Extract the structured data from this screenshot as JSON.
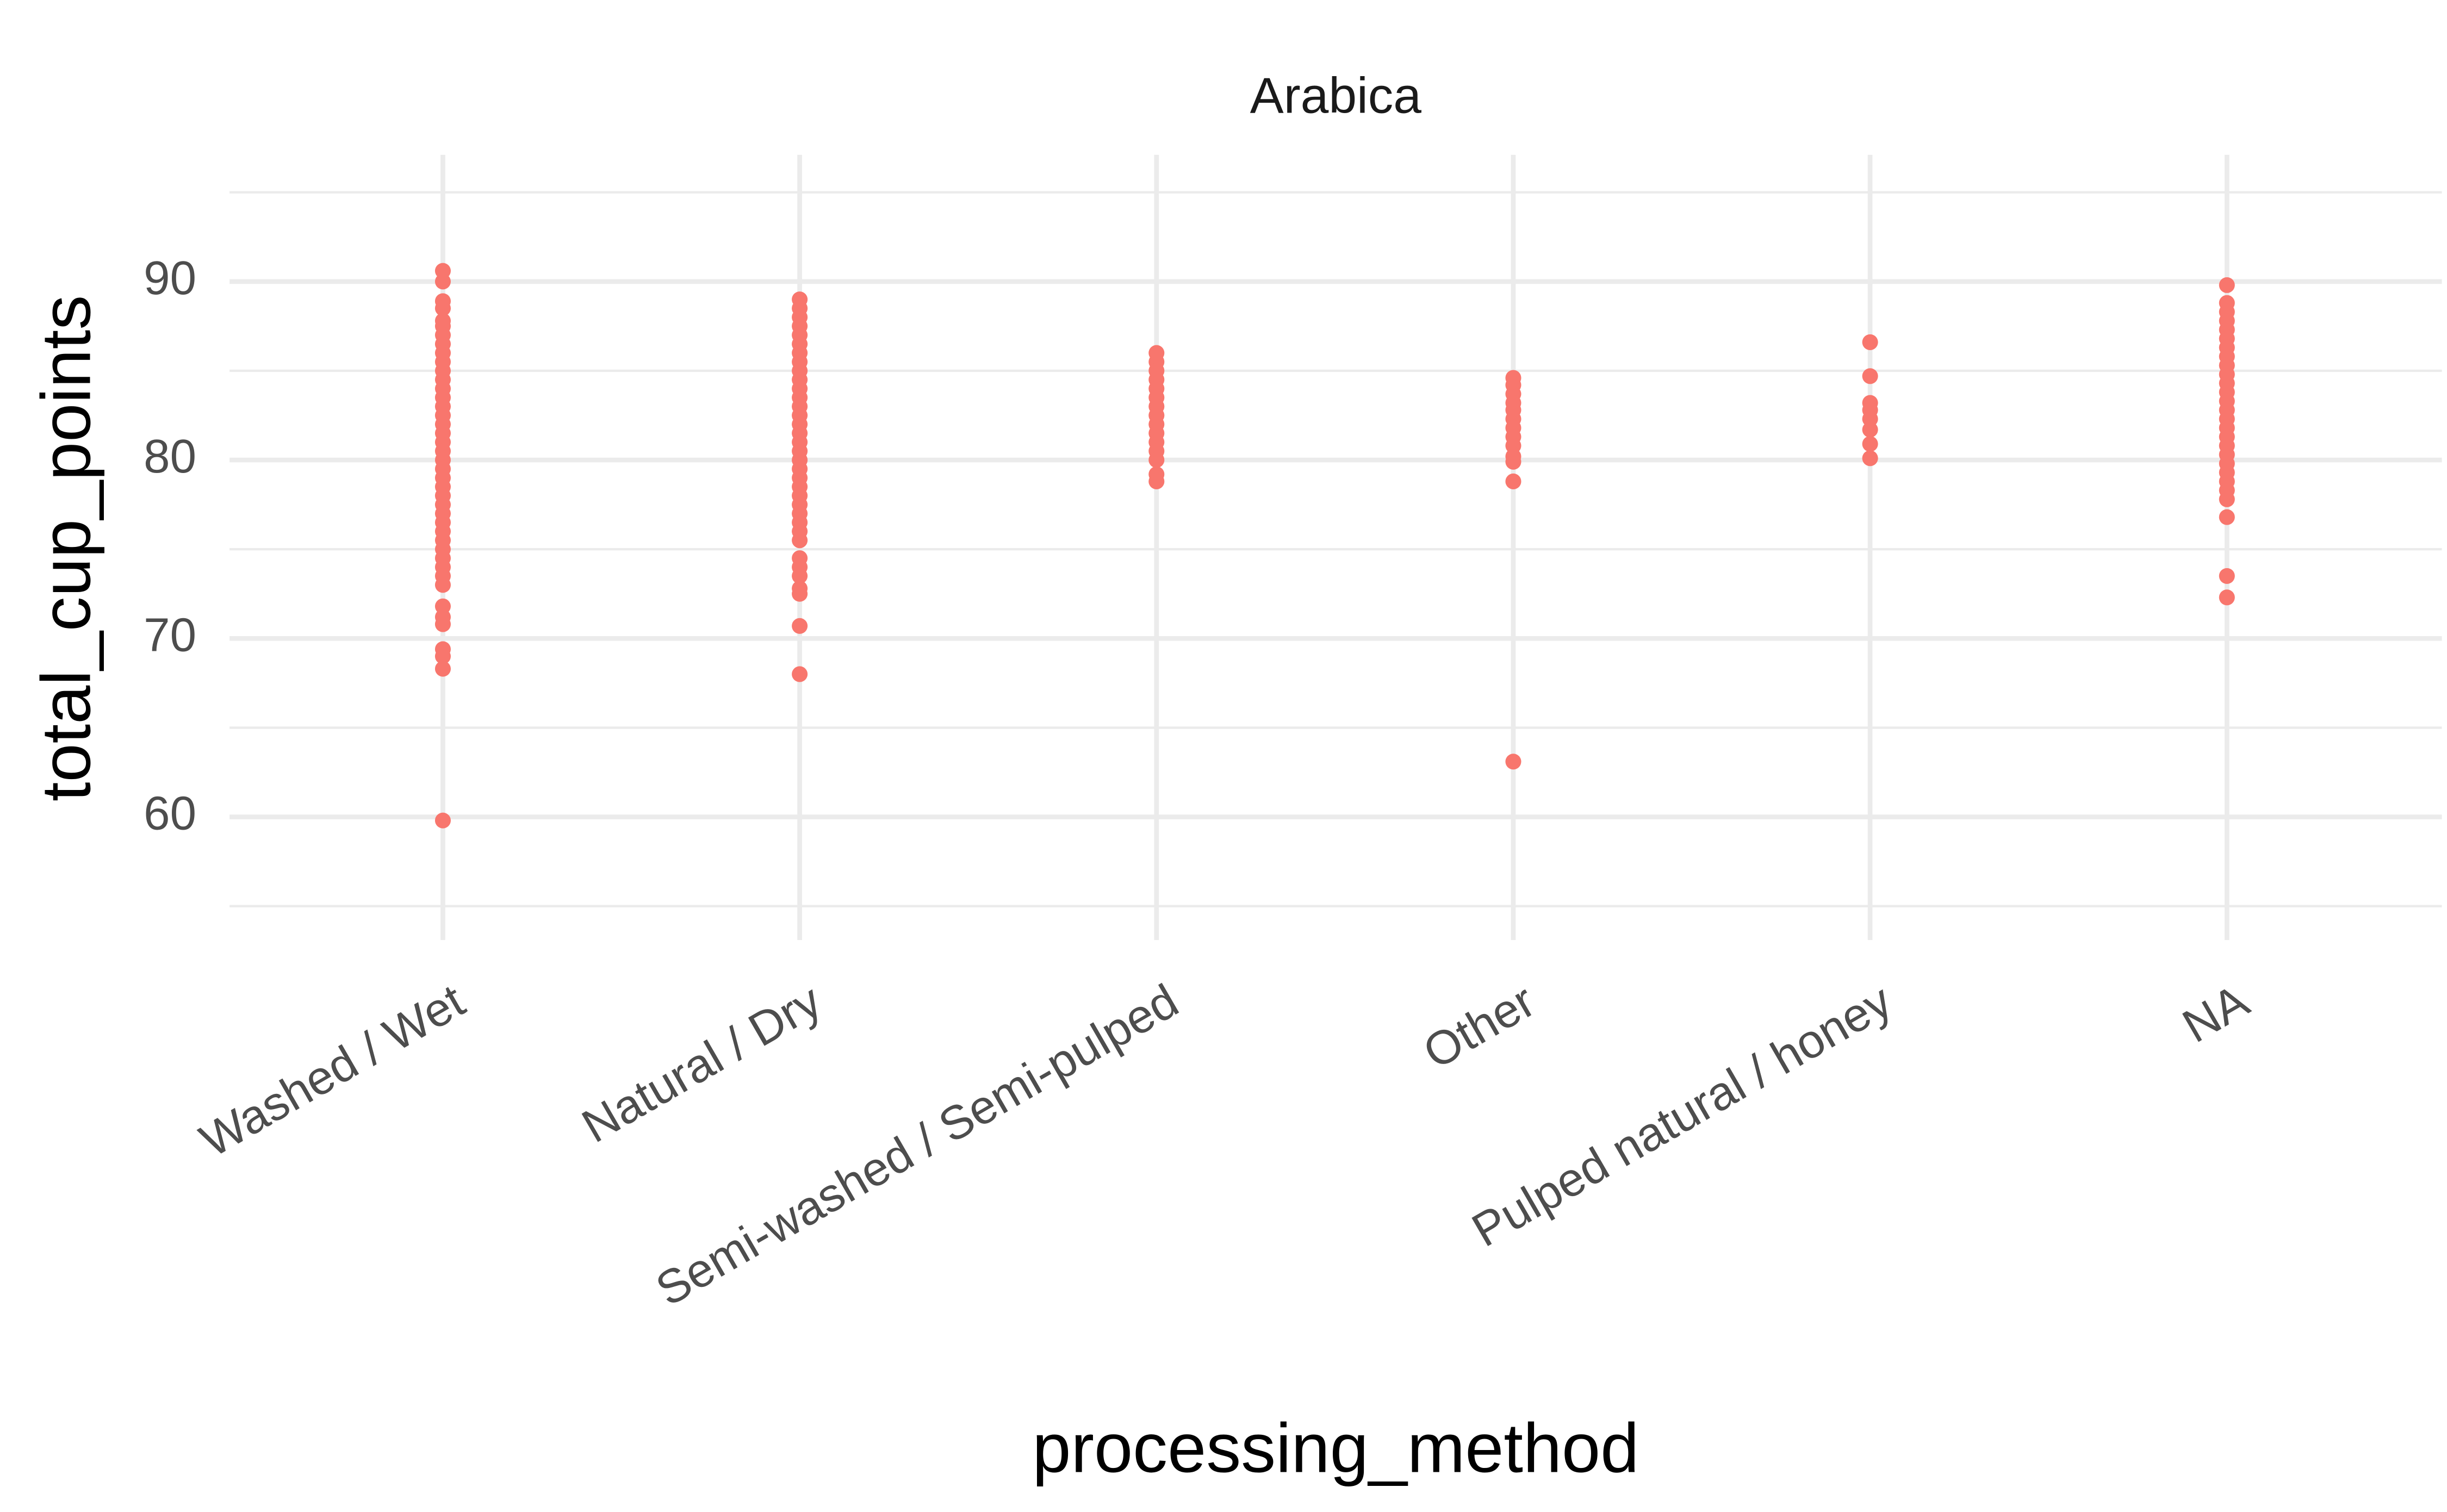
{
  "chart_data": {
    "type": "strip",
    "title": "Arabica",
    "x_label": "processing_method",
    "y_label": "total_cup_points",
    "categories": [
      "Washed / Wet",
      "Natural / Dry",
      "Semi-washed / Semi-pulped",
      "Other",
      "Pulped natural / honey",
      "NA"
    ],
    "values": [
      [
        90.6,
        90,
        88.9,
        88.5,
        87.8,
        87.5,
        87,
        86.5,
        86,
        85.5,
        85,
        84.5,
        84,
        83.5,
        83,
        82.5,
        82,
        81.5,
        81,
        80.5,
        80,
        79.5,
        79,
        78.5,
        78,
        77.5,
        77,
        76.5,
        76,
        75.5,
        75,
        74.5,
        74,
        73.5,
        73,
        71.8,
        71.2,
        70.8,
        69.4,
        69,
        68.3,
        59.8
      ],
      [
        89,
        88.5,
        88,
        87.5,
        87,
        86.5,
        86,
        85.5,
        85,
        84.5,
        84,
        83.5,
        83,
        82.5,
        82,
        81.5,
        81,
        80.5,
        80,
        79.5,
        79,
        78.5,
        78,
        77.5,
        77,
        76.5,
        76,
        75.5,
        74.5,
        74,
        73.5,
        72.8,
        72.5,
        70.7,
        68
      ],
      [
        86,
        85.5,
        85,
        84.5,
        84,
        83.5,
        83,
        82.5,
        82,
        81.5,
        81,
        80.5,
        80,
        79.2,
        78.8
      ],
      [
        84.6,
        84.2,
        83.7,
        83.2,
        82.8,
        82.3,
        81.8,
        81.3,
        80.8,
        80.2,
        79.9,
        78.8,
        63.1
      ],
      [
        86.6,
        84.7,
        83.2,
        82.8,
        82.3,
        81.7,
        80.9,
        80.1
      ],
      [
        89.8,
        88.8,
        88.3,
        87.8,
        87.3,
        86.8,
        86.3,
        85.8,
        85.3,
        84.8,
        84.3,
        83.8,
        83.3,
        82.8,
        82.3,
        81.8,
        81.3,
        80.8,
        80.3,
        79.8,
        79.3,
        78.8,
        78.3,
        77.8,
        76.8,
        73.5,
        72.3
      ]
    ],
    "color": "#f8766d",
    "ylim": [
      53.1,
      97.1
    ],
    "yticks": [
      60,
      70,
      80,
      90
    ],
    "minor_yticks": [
      55,
      65,
      75,
      85,
      95
    ],
    "grid": true
  }
}
